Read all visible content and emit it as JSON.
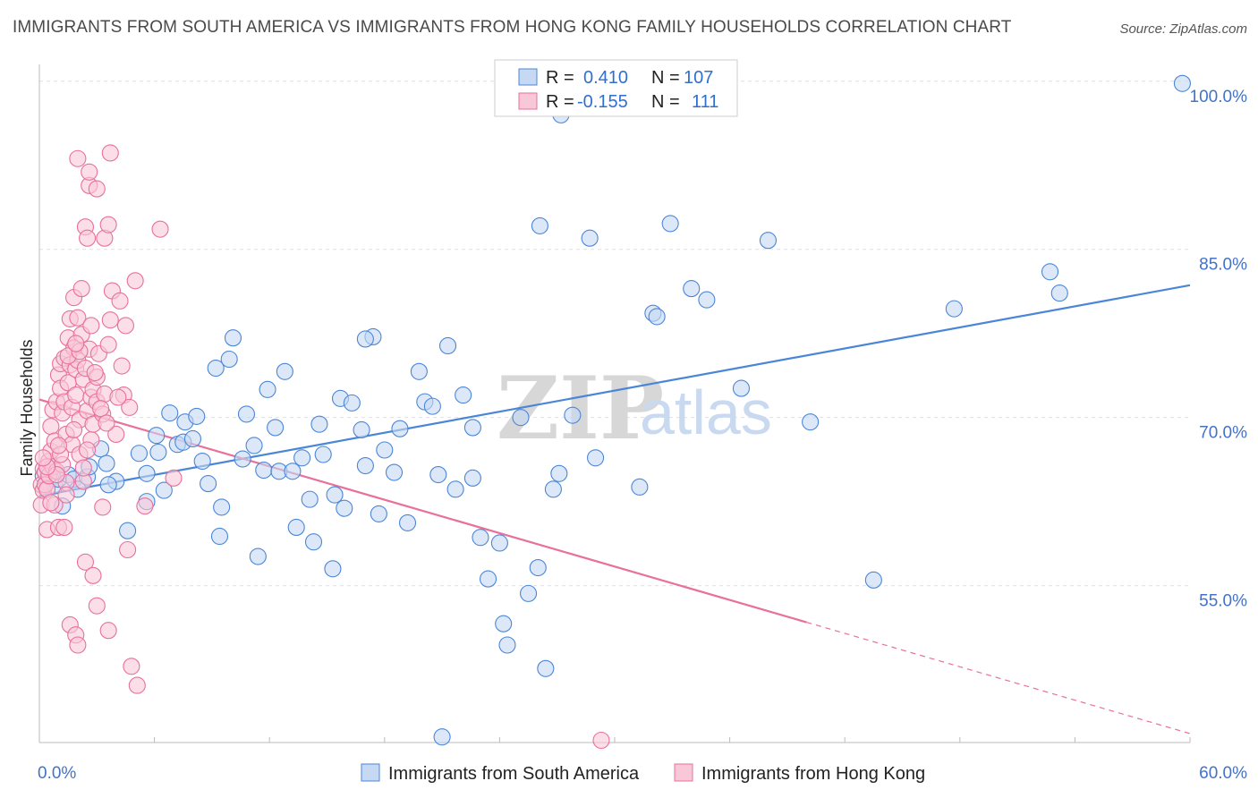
{
  "header": {
    "title": "IMMIGRANTS FROM SOUTH AMERICA VS IMMIGRANTS FROM HONG KONG FAMILY HOUSEHOLDS CORRELATION CHART",
    "source": "Source: ZipAtlas.com"
  },
  "watermark": {
    "zip": "ZIP",
    "atlas": "atlas"
  },
  "chart_data": {
    "type": "scatter",
    "title": "IMMIGRANTS FROM SOUTH AMERICA VS IMMIGRANTS FROM HONG KONG FAMILY HOUSEHOLDS CORRELATION CHART",
    "xlabel": "",
    "ylabel": "Family Households",
    "xlim": [
      0,
      60
    ],
    "ylim": [
      41,
      101.5
    ],
    "x_tick_labels": [
      "0.0%",
      "60.0%"
    ],
    "y_ticks": [
      55,
      70,
      85,
      100
    ],
    "y_tick_labels": [
      "55.0%",
      "70.0%",
      "85.0%",
      "100.0%"
    ],
    "grid": true,
    "legend_position": "top-center",
    "colors": {
      "blue": "#4a86d8",
      "pink": "#e8709a",
      "blue_fill": "#c5d9f3",
      "pink_fill": "#f8c8d8"
    },
    "stats": [
      {
        "r_label": "R =",
        "r": "0.410",
        "n_label": "N =",
        "n": "107"
      },
      {
        "r_label": "R =",
        "r": "-0.155",
        "n_label": "N =",
        "n": "111"
      }
    ],
    "series": [
      {
        "name": "Immigrants from South America",
        "color": "#4a86d8",
        "trend": {
          "x": [
            0,
            60
          ],
          "y": [
            63.0,
            81.8
          ],
          "solid_to": 60
        },
        "points": [
          [
            0.2,
            64.8
          ],
          [
            0.4,
            64.2
          ],
          [
            0.5,
            65.1
          ],
          [
            0.6,
            64.6
          ],
          [
            0.8,
            63.9
          ],
          [
            1.0,
            64.5
          ],
          [
            1.2,
            62.1
          ],
          [
            1.5,
            64.9
          ],
          [
            1.8,
            64.5
          ],
          [
            2.0,
            63.6
          ],
          [
            2.5,
            64.7
          ],
          [
            2.6,
            65.6
          ],
          [
            3.2,
            67.2
          ],
          [
            3.5,
            65.9
          ],
          [
            4.0,
            64.3
          ],
          [
            4.6,
            59.9
          ],
          [
            5.2,
            66.8
          ],
          [
            5.6,
            62.5
          ],
          [
            6.1,
            68.4
          ],
          [
            6.2,
            66.9
          ],
          [
            6.5,
            63.5
          ],
          [
            6.8,
            70.4
          ],
          [
            7.2,
            67.6
          ],
          [
            7.5,
            67.8
          ],
          [
            7.6,
            69.6
          ],
          [
            8.0,
            68.1
          ],
          [
            8.2,
            70.1
          ],
          [
            8.5,
            66.1
          ],
          [
            8.8,
            64.1
          ],
          [
            9.2,
            74.4
          ],
          [
            9.4,
            59.4
          ],
          [
            9.9,
            75.2
          ],
          [
            10.1,
            77.1
          ],
          [
            10.6,
            66.3
          ],
          [
            10.8,
            70.3
          ],
          [
            11.2,
            67.5
          ],
          [
            11.4,
            57.6
          ],
          [
            11.7,
            65.3
          ],
          [
            11.9,
            72.5
          ],
          [
            12.3,
            69.1
          ],
          [
            12.5,
            65.2
          ],
          [
            12.8,
            74.1
          ],
          [
            13.2,
            65.2
          ],
          [
            13.4,
            60.2
          ],
          [
            13.7,
            66.4
          ],
          [
            14.1,
            62.7
          ],
          [
            14.3,
            58.9
          ],
          [
            14.6,
            69.4
          ],
          [
            14.8,
            66.7
          ],
          [
            15.3,
            56.5
          ],
          [
            15.4,
            63.1
          ],
          [
            15.7,
            71.7
          ],
          [
            15.9,
            61.9
          ],
          [
            16.3,
            71.3
          ],
          [
            16.8,
            68.9
          ],
          [
            17.0,
            65.7
          ],
          [
            17.4,
            77.2
          ],
          [
            17.7,
            61.4
          ],
          [
            18.0,
            67.1
          ],
          [
            18.5,
            65.1
          ],
          [
            18.8,
            69.0
          ],
          [
            19.2,
            60.6
          ],
          [
            19.8,
            74.1
          ],
          [
            20.1,
            71.4
          ],
          [
            20.5,
            71.0
          ],
          [
            20.8,
            64.9
          ],
          [
            21.3,
            76.4
          ],
          [
            21.7,
            63.6
          ],
          [
            22.1,
            72.0
          ],
          [
            22.6,
            69.1
          ],
          [
            22.6,
            64.6
          ],
          [
            23.0,
            59.3
          ],
          [
            23.4,
            55.6
          ],
          [
            24.0,
            58.8
          ],
          [
            24.2,
            51.6
          ],
          [
            24.4,
            49.7
          ],
          [
            25.1,
            70.0
          ],
          [
            25.5,
            54.3
          ],
          [
            26.0,
            56.6
          ],
          [
            26.1,
            87.1
          ],
          [
            26.4,
            47.6
          ],
          [
            26.8,
            63.6
          ],
          [
            27.1,
            65.0
          ],
          [
            27.8,
            70.2
          ],
          [
            28.7,
            86.0
          ],
          [
            29.0,
            66.4
          ],
          [
            31.3,
            63.8
          ],
          [
            32.0,
            79.3
          ],
          [
            32.2,
            79.0
          ],
          [
            32.9,
            87.3
          ],
          [
            34.0,
            81.5
          ],
          [
            34.8,
            80.5
          ],
          [
            36.6,
            72.6
          ],
          [
            38.0,
            85.8
          ],
          [
            40.2,
            69.6
          ],
          [
            43.5,
            55.5
          ],
          [
            47.7,
            79.7
          ],
          [
            52.7,
            83.0
          ],
          [
            53.2,
            81.1
          ],
          [
            59.6,
            99.8
          ],
          [
            27.0,
            100.0
          ],
          [
            27.2,
            97.0
          ],
          [
            21.0,
            41.5
          ],
          [
            3.6,
            64.0
          ],
          [
            5.6,
            65.0
          ],
          [
            9.5,
            62.0
          ],
          [
            17.0,
            77.0
          ]
        ]
      },
      {
        "name": "Immigrants from Hong Kong",
        "color": "#e8709a",
        "trend": {
          "x": [
            0,
            60
          ],
          "y": [
            71.6,
            41.8
          ],
          "solid_to": 40
        },
        "points": [
          [
            0.1,
            64.0
          ],
          [
            0.1,
            62.2
          ],
          [
            0.2,
            65.4
          ],
          [
            0.2,
            63.5
          ],
          [
            0.3,
            65.1
          ],
          [
            0.3,
            64.0
          ],
          [
            0.4,
            63.6
          ],
          [
            0.4,
            60.0
          ],
          [
            0.5,
            66.1
          ],
          [
            0.5,
            64.8
          ],
          [
            0.6,
            67.0
          ],
          [
            0.6,
            69.2
          ],
          [
            0.7,
            70.7
          ],
          [
            0.7,
            65.6
          ],
          [
            0.8,
            62.2
          ],
          [
            0.8,
            67.9
          ],
          [
            0.9,
            71.4
          ],
          [
            0.9,
            65.2
          ],
          [
            1.0,
            60.2
          ],
          [
            1.0,
            73.8
          ],
          [
            1.1,
            74.8
          ],
          [
            1.1,
            72.6
          ],
          [
            1.2,
            65.8
          ],
          [
            1.2,
            70.4
          ],
          [
            1.3,
            75.3
          ],
          [
            1.3,
            71.4
          ],
          [
            1.4,
            64.2
          ],
          [
            1.4,
            68.5
          ],
          [
            1.5,
            77.1
          ],
          [
            1.5,
            73.1
          ],
          [
            1.6,
            78.8
          ],
          [
            1.6,
            74.7
          ],
          [
            1.7,
            70.9
          ],
          [
            1.7,
            67.6
          ],
          [
            1.8,
            80.7
          ],
          [
            1.8,
            76.2
          ],
          [
            1.9,
            74.3
          ],
          [
            1.9,
            72.0
          ],
          [
            2.0,
            78.9
          ],
          [
            2.0,
            75.1
          ],
          [
            2.1,
            69.8
          ],
          [
            2.1,
            66.7
          ],
          [
            2.2,
            81.5
          ],
          [
            2.2,
            77.4
          ],
          [
            2.3,
            73.4
          ],
          [
            2.3,
            64.3
          ],
          [
            2.4,
            87.0
          ],
          [
            2.4,
            74.4
          ],
          [
            2.5,
            86.0
          ],
          [
            2.5,
            70.6
          ],
          [
            2.6,
            90.7
          ],
          [
            2.6,
            76.1
          ],
          [
            2.7,
            68.0
          ],
          [
            2.7,
            71.8
          ],
          [
            2.8,
            72.5
          ],
          [
            2.8,
            69.4
          ],
          [
            3.0,
            71.4
          ],
          [
            3.0,
            73.6
          ],
          [
            3.1,
            75.7
          ],
          [
            3.3,
            70.3
          ],
          [
            3.4,
            72.1
          ],
          [
            3.6,
            76.5
          ],
          [
            3.7,
            78.7
          ],
          [
            3.8,
            81.3
          ],
          [
            4.0,
            68.5
          ],
          [
            4.2,
            80.4
          ],
          [
            4.4,
            72.0
          ],
          [
            4.5,
            78.2
          ],
          [
            4.7,
            70.9
          ],
          [
            5.0,
            82.2
          ],
          [
            5.5,
            62.1
          ],
          [
            6.3,
            86.8
          ],
          [
            7.0,
            64.6
          ],
          [
            2.0,
            93.1
          ],
          [
            2.6,
            91.9
          ],
          [
            3.0,
            90.4
          ],
          [
            3.7,
            93.6
          ],
          [
            3.4,
            86.0
          ],
          [
            3.6,
            87.2
          ],
          [
            1.3,
            60.2
          ],
          [
            2.4,
            57.1
          ],
          [
            2.8,
            55.9
          ],
          [
            3.0,
            53.2
          ],
          [
            1.6,
            51.5
          ],
          [
            1.9,
            50.6
          ],
          [
            2.0,
            49.7
          ],
          [
            3.6,
            51.0
          ],
          [
            4.8,
            47.8
          ],
          [
            5.1,
            46.1
          ],
          [
            4.6,
            58.2
          ],
          [
            3.3,
            62.0
          ],
          [
            1.1,
            66.7
          ],
          [
            0.9,
            64.9
          ],
          [
            2.3,
            65.5
          ],
          [
            1.4,
            63.1
          ],
          [
            0.6,
            62.4
          ],
          [
            1.8,
            68.9
          ],
          [
            2.5,
            67.1
          ],
          [
            3.2,
            70.8
          ],
          [
            0.4,
            65.6
          ],
          [
            0.2,
            66.4
          ],
          [
            1.0,
            67.5
          ],
          [
            2.9,
            74.0
          ],
          [
            4.1,
            71.8
          ],
          [
            1.5,
            75.5
          ],
          [
            2.1,
            75.9
          ],
          [
            3.5,
            69.5
          ],
          [
            4.3,
            74.6
          ],
          [
            29.3,
            41.2
          ],
          [
            1.9,
            76.6
          ],
          [
            2.7,
            78.2
          ]
        ]
      }
    ]
  },
  "legend": {
    "items": [
      "Immigrants from South America",
      "Immigrants from Hong Kong"
    ]
  }
}
